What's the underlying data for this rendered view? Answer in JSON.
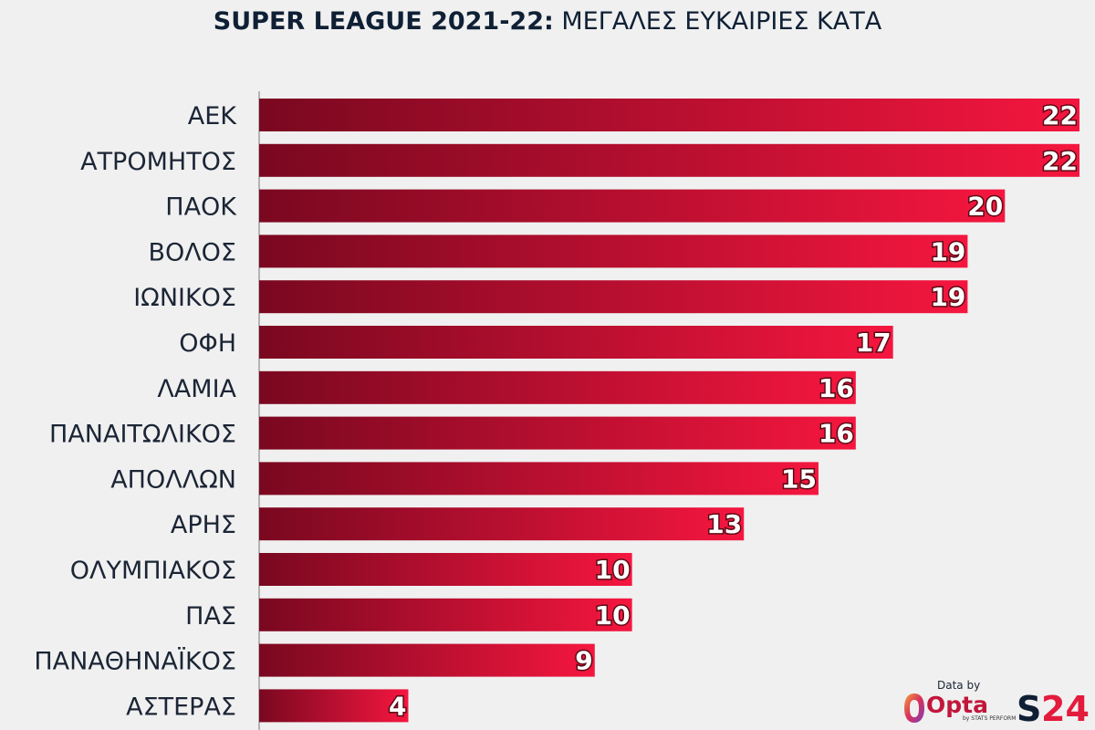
{
  "title_bold": "SUPER LEAGUE 2021-22:",
  "title_rest": " ΜΕΓΑΛΕΣ ΕΥΚΑΙΡΙΕΣ ΚΑΤΑ",
  "chart_data": {
    "type": "bar",
    "orientation": "horizontal",
    "title": "SUPER LEAGUE 2021-22: ΜΕΓΑΛΕΣ ΕΥΚΑΙΡΙΕΣ ΚΑΤΑ",
    "categories": [
      "ΑΕΚ",
      "ΑΤΡΟΜΗΤΟΣ",
      "ΠΑΟΚ",
      "ΒΟΛΟΣ",
      "ΙΩΝΙΚΟΣ",
      "ΟΦΗ",
      "ΛΑΜΙΑ",
      "ΠΑΝΑΙΤΩΛΙΚΟΣ",
      "ΑΠΟΛΛΩΝ",
      "ΑΡΗΣ",
      "ΟΛΥΜΠΙΑΚΟΣ",
      "ΠΑΣ",
      "ΠΑΝΑΘΗΝΑΪΚΟΣ",
      "ΑΣΤΕΡΑΣ"
    ],
    "values": [
      22,
      22,
      20,
      19,
      19,
      17,
      16,
      16,
      15,
      13,
      10,
      10,
      9,
      4
    ],
    "xlim": [
      0,
      22
    ],
    "grid": false,
    "colors": {
      "bar_start": "#7a0820",
      "bar_end": "#f5163f"
    }
  },
  "branding": {
    "data_by": "Data by",
    "opta": "Opta",
    "opta_sub": "by STATS PERFORM",
    "s24": "S24"
  }
}
